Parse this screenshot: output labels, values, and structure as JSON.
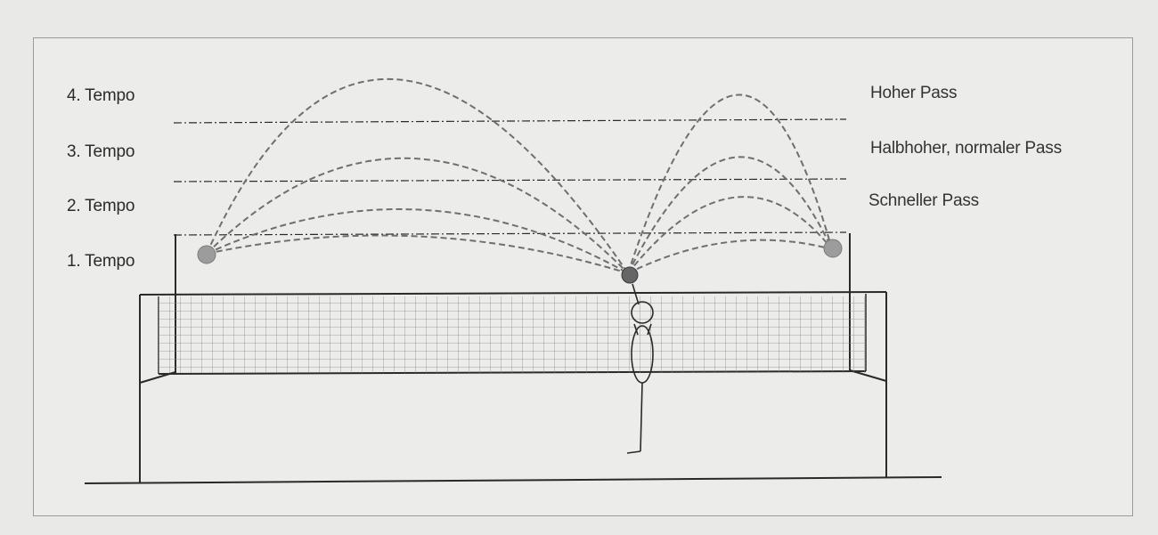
{
  "tempo_levels": [
    {
      "label": "1. Tempo"
    },
    {
      "label": "2. Tempo"
    },
    {
      "label": "3. Tempo"
    },
    {
      "label": "4. Tempo"
    }
  ],
  "pass_types": [
    {
      "label": "Hoher Pass"
    },
    {
      "label": "Halbhoher, normaler Pass"
    },
    {
      "label": "Schneller Pass"
    }
  ],
  "colors": {
    "background": "#ececea",
    "line": "#2a2a2a",
    "trajectory": "#6f6f6f",
    "ball": "#9c9c9c",
    "setter_ball": "#666666"
  }
}
